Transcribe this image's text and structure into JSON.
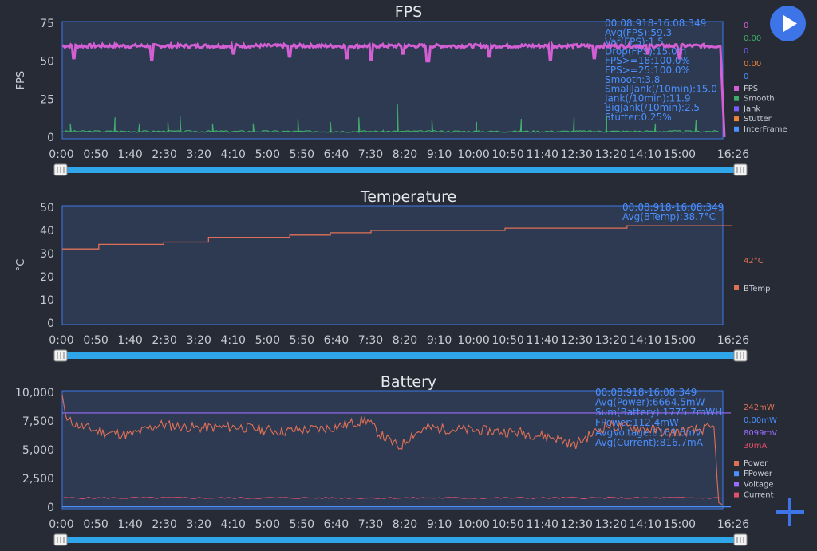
{
  "colors": {
    "fps": "#d45fd4",
    "smooth": "#3fae6a",
    "jank": "#7a5cff",
    "stutter": "#f0843c",
    "interframe": "#4a90ff",
    "btemp": "#e07055",
    "power": "#e07055",
    "fpower": "#4a90ff",
    "voltage": "#9a6cff",
    "current": "#e0506a",
    "axis": "#3e78e8",
    "slider": "#2fa6ea"
  },
  "controls": {
    "play_icon": "play-icon",
    "add_icon": "plus-icon"
  },
  "chart_data": [
    {
      "type": "line",
      "title": "FPS",
      "ylabel": "FPS",
      "ylim": [
        0,
        75
      ],
      "yticks": [
        "0",
        "25",
        "50",
        "75"
      ],
      "xticks": [
        "0:00",
        "0:50",
        "1:40",
        "2:30",
        "3:20",
        "4:10",
        "5:00",
        "5:50",
        "6:40",
        "7:30",
        "8:20",
        "9:10",
        "10:00",
        "10:50",
        "11:40",
        "12:30",
        "13:20",
        "14:10",
        "15:00",
        "16:26"
      ],
      "stats": [
        "00:08:918-16:08:349",
        "Avg(FPS):59.3",
        "Var(FPS):1.5",
        "Drop(FPS):15.0/h",
        "FPS>=18:100.0%",
        "FPS>=25:100.0%",
        "Smooth:3.8",
        "SmallJank(/10min):15.0",
        "Jank(/10min):11.9",
        "BigJank(/10min):2.5",
        "Stutter:0.25%"
      ],
      "cursor_values": [
        "0",
        "0.00",
        "0",
        "0.00",
        "0"
      ],
      "legend": [
        "FPS",
        "Smooth",
        "Jank",
        "Stutter",
        "InterFrame"
      ],
      "series": [
        {
          "name": "FPS",
          "typical": 60,
          "dips": [
            [
              0.3,
              52
            ],
            [
              2.2,
              51
            ],
            [
              4.2,
              55
            ],
            [
              5.6,
              53
            ],
            [
              7.0,
              52
            ],
            [
              7.6,
              51
            ],
            [
              8.4,
              55
            ],
            [
              9.0,
              50
            ],
            [
              10.5,
              53
            ],
            [
              12.0,
              51
            ],
            [
              13.1,
              52
            ],
            [
              14.4,
              55
            ],
            [
              15.2,
              52
            ],
            [
              16.3,
              0
            ]
          ]
        },
        {
          "name": "Smooth",
          "typical": 3.8,
          "spikes": [
            [
              0.2,
              9
            ],
            [
              1.3,
              13
            ],
            [
              1.9,
              9
            ],
            [
              2.6,
              10
            ],
            [
              2.9,
              14
            ],
            [
              3.7,
              9
            ],
            [
              4.7,
              9
            ],
            [
              5.8,
              12
            ],
            [
              6.6,
              10
            ],
            [
              7.3,
              13
            ],
            [
              7.9,
              4
            ],
            [
              8.25,
              22
            ],
            [
              9.1,
              11
            ],
            [
              10.2,
              10
            ],
            [
              11.3,
              12
            ],
            [
              12.6,
              13
            ],
            [
              13.4,
              14
            ],
            [
              14.6,
              9
            ],
            [
              15.6,
              11
            ]
          ]
        }
      ]
    },
    {
      "type": "line",
      "title": "Temperature",
      "ylabel": "°C",
      "ylim": [
        0,
        50
      ],
      "yticks": [
        "0",
        "10",
        "20",
        "30",
        "40",
        "50"
      ],
      "xticks": [
        "0:00",
        "0:50",
        "1:40",
        "2:30",
        "3:20",
        "4:10",
        "5:00",
        "5:50",
        "6:40",
        "7:30",
        "8:20",
        "9:10",
        "10:00",
        "10:50",
        "11:40",
        "12:30",
        "13:20",
        "14:10",
        "15:00",
        "16:26"
      ],
      "stats": [
        "00:08:918-16:08:349",
        "Avg(BTemp):38.7°C"
      ],
      "cursor_values": [
        "42°C"
      ],
      "legend": [
        "BTemp"
      ],
      "series": [
        {
          "name": "BTemp",
          "steps": [
            [
              0,
              32
            ],
            [
              0.9,
              34
            ],
            [
              2.5,
              35
            ],
            [
              3.6,
              37
            ],
            [
              5.6,
              38
            ],
            [
              6.6,
              39
            ],
            [
              7.6,
              40
            ],
            [
              10.9,
              41
            ],
            [
              13.9,
              42
            ],
            [
              16.26,
              42
            ]
          ]
        }
      ]
    },
    {
      "type": "line",
      "title": "Battery",
      "ylim": [
        0,
        10000
      ],
      "yticks": [
        "0",
        "2,500",
        "5,000",
        "7,500",
        "10,000"
      ],
      "xticks": [
        "0:00",
        "0:50",
        "1:40",
        "2:30",
        "3:20",
        "4:10",
        "5:00",
        "5:50",
        "6:40",
        "7:30",
        "8:20",
        "9:10",
        "10:00",
        "10:50",
        "11:40",
        "12:30",
        "13:20",
        "14:10",
        "15:00",
        "16:26"
      ],
      "stats": [
        "00:08:918-16:08:349",
        "Avg(Power):6664.5mW",
        "Sum(Battery):1775.7mWH",
        "FPower:112.4mW",
        "AvgVoltage:8169.6mV",
        "Avg(Current):816.7mA"
      ],
      "cursor_values": [
        "242mW",
        "0.00mW",
        "8099mV",
        "30mA"
      ],
      "legend": [
        "Power",
        "FPower",
        "Voltage",
        "Current"
      ],
      "series": [
        {
          "name": "Power",
          "typical": 6700,
          "points": [
            [
              0,
              9800
            ],
            [
              0.1,
              7600
            ],
            [
              0.5,
              7000
            ],
            [
              1.0,
              6500
            ],
            [
              1.7,
              6300
            ],
            [
              2.4,
              7200
            ],
            [
              3.3,
              6900
            ],
            [
              4.3,
              7000
            ],
            [
              5.4,
              6600
            ],
            [
              6.6,
              6900
            ],
            [
              7.5,
              7600
            ],
            [
              7.8,
              6400
            ],
            [
              8.3,
              5200
            ],
            [
              8.6,
              6300
            ],
            [
              9.0,
              6900
            ],
            [
              10.1,
              6700
            ],
            [
              11.3,
              6500
            ],
            [
              12.2,
              6000
            ],
            [
              12.6,
              5400
            ],
            [
              13.0,
              6300
            ],
            [
              13.4,
              7100
            ],
            [
              14.2,
              6900
            ],
            [
              14.9,
              6500
            ],
            [
              15.6,
              6700
            ],
            [
              16.05,
              6900
            ],
            [
              16.15,
              400
            ],
            [
              16.26,
              200
            ]
          ]
        },
        {
          "name": "Voltage",
          "typical": 8200
        },
        {
          "name": "Current",
          "typical": 800
        }
      ]
    }
  ]
}
